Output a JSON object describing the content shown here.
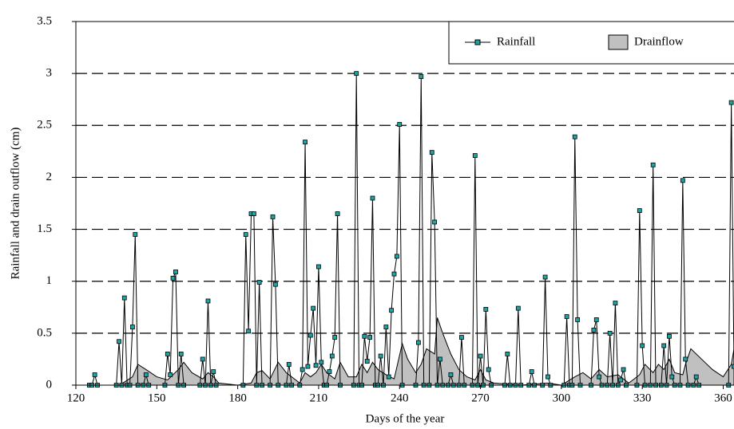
{
  "chart_data": {
    "type": "line",
    "xlabel": "Days of the year",
    "ylabel": "Rainfall and drain outflow (cm)",
    "xlim": [
      120,
      364
    ],
    "xticks": [
      120,
      150,
      180,
      210,
      240,
      270,
      300,
      330,
      360
    ],
    "ylim": [
      0,
      3.5
    ],
    "yticks": [
      0,
      0.5,
      1,
      1.5,
      2,
      2.5,
      3,
      3.5
    ],
    "grid": true,
    "legend": "upper right",
    "series": [
      {
        "name": "Rainfall",
        "color": "#1fa3a3",
        "style": "line-markers",
        "x": [
          125,
          126,
          127,
          128,
          135,
          136,
          137,
          138,
          139,
          140,
          141,
          142,
          143,
          145,
          146,
          147,
          153,
          154,
          155,
          156,
          157,
          158,
          159,
          160,
          166,
          167,
          168,
          169,
          170,
          171,
          172,
          182,
          183,
          184,
          185,
          186,
          187,
          188,
          189,
          192,
          193,
          194,
          195,
          198,
          199,
          200,
          203,
          204,
          205,
          206,
          207,
          208,
          209,
          210,
          211,
          212,
          213,
          214,
          215,
          216,
          217,
          218,
          223,
          224,
          225,
          226,
          227,
          228,
          229,
          230,
          231,
          232,
          233,
          234,
          235,
          236,
          237,
          238,
          239,
          240,
          241,
          246,
          247,
          248,
          249,
          251,
          252,
          253,
          254,
          255,
          256,
          258,
          259,
          260,
          262,
          263,
          264,
          267,
          268,
          269,
          270,
          271,
          272,
          273,
          274,
          279,
          280,
          281,
          283,
          284,
          285,
          288,
          289,
          290,
          293,
          294,
          295,
          296,
          301,
          302,
          303,
          304,
          305,
          306,
          307,
          311,
          312,
          313,
          314,
          315,
          317,
          318,
          319,
          320,
          321,
          322,
          323,
          324,
          328,
          329,
          330,
          331,
          333,
          334,
          335,
          337,
          338,
          339,
          340,
          341,
          342,
          344,
          345,
          346,
          347,
          349,
          350,
          351,
          362,
          363,
          364
        ],
        "values": [
          0,
          0,
          0.1,
          0,
          0,
          0.42,
          0,
          0.84,
          0,
          0,
          0.56,
          1.45,
          0,
          0,
          0.1,
          0,
          0,
          0.3,
          0.1,
          1.03,
          1.09,
          0,
          0.3,
          0,
          0,
          0.25,
          0,
          0.81,
          0,
          0.13,
          0,
          0,
          1.45,
          0.52,
          1.65,
          1.65,
          0,
          0.99,
          0,
          0,
          1.62,
          0.97,
          0,
          0,
          0.2,
          0,
          0,
          0.15,
          2.34,
          0.18,
          0.48,
          0.74,
          0.19,
          1.14,
          0.22,
          0,
          0,
          0.13,
          0.28,
          0.46,
          1.65,
          0,
          0,
          3.0,
          0,
          0,
          0.47,
          0.23,
          0.46,
          1.8,
          0,
          0,
          0.28,
          0,
          0.56,
          0.08,
          0.72,
          1.07,
          1.24,
          2.51,
          0,
          0,
          0.41,
          2.97,
          0,
          0,
          2.24,
          1.57,
          0,
          0.25,
          0,
          0,
          0.1,
          0,
          0,
          0.46,
          0,
          0,
          2.21,
          0,
          0.28,
          0,
          0.73,
          0.15,
          0,
          0,
          0.3,
          0,
          0,
          0.74,
          0,
          0,
          0.13,
          0,
          0,
          1.04,
          0.08,
          0,
          0,
          0.66,
          0,
          0,
          2.39,
          0.63,
          0,
          0,
          0.53,
          0.63,
          0.08,
          0,
          0,
          0.5,
          0,
          0.79,
          0,
          0.05,
          0.15,
          0,
          0,
          1.68,
          0.38,
          0,
          0,
          2.12,
          0,
          0,
          0.38,
          0,
          0.47,
          0.08,
          0,
          0,
          1.97,
          0.25,
          0,
          0,
          0.08,
          0,
          0,
          2.72,
          0.18
        ]
      },
      {
        "name": "Drainflow",
        "color": "#c0c0c0",
        "style": "area",
        "x": [
          125,
          136,
          138,
          141,
          143,
          146,
          150,
          154,
          156,
          158,
          160,
          163,
          167,
          169,
          171,
          173,
          180,
          185,
          187,
          189,
          192,
          195,
          198,
          203,
          205,
          207,
          209,
          211,
          213,
          216,
          218,
          221,
          224,
          226,
          228,
          230,
          232,
          235,
          238,
          241,
          243,
          246,
          248,
          250,
          253,
          254,
          256,
          259,
          262,
          265,
          268,
          270,
          272,
          275,
          285,
          295,
          300,
          305,
          308,
          311,
          314,
          317,
          321,
          325,
          329,
          331,
          334,
          336,
          338,
          340,
          342,
          345,
          346,
          348,
          352,
          356,
          360,
          363,
          364
        ],
        "values": [
          0,
          0,
          0.03,
          0.08,
          0.2,
          0.15,
          0.08,
          0.05,
          0.1,
          0.15,
          0.22,
          0.12,
          0.06,
          0.12,
          0.08,
          0.02,
          0,
          0.02,
          0.12,
          0.14,
          0.06,
          0.22,
          0.12,
          0.02,
          0.12,
          0.08,
          0.12,
          0.2,
          0.12,
          0.06,
          0.22,
          0.08,
          0.08,
          0.2,
          0.12,
          0.22,
          0.15,
          0.1,
          0.06,
          0.4,
          0.25,
          0.12,
          0.2,
          0.35,
          0.3,
          0.65,
          0.5,
          0.3,
          0.15,
          0.08,
          0.05,
          0.15,
          0.05,
          0.02,
          0,
          0.02,
          0,
          0.08,
          0.12,
          0.06,
          0.15,
          0.08,
          0.1,
          0.02,
          0.1,
          0.2,
          0.12,
          0.2,
          0.15,
          0.25,
          0.12,
          0.1,
          0.2,
          0.35,
          0.25,
          0.15,
          0.08,
          0.2,
          0.35
        ]
      }
    ]
  }
}
